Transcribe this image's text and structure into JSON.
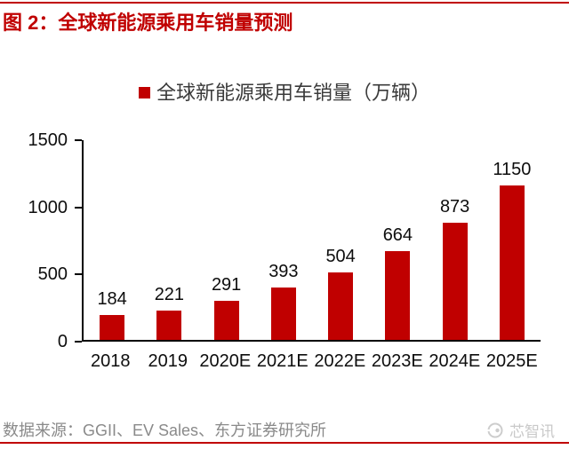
{
  "header": {
    "title": "图 2：全球新能源乘用车销量预测"
  },
  "chart_data": {
    "type": "bar",
    "title": "全球新能源乘用车销量预测",
    "legend": [
      "全球新能源乘用车销量（万辆）"
    ],
    "legend_position": "top-center",
    "categories": [
      "2018",
      "2019",
      "2020E",
      "2021E",
      "2022E",
      "2023E",
      "2024E",
      "2025E"
    ],
    "values": [
      184,
      221,
      291,
      393,
      504,
      664,
      873,
      1150
    ],
    "xlabel": "",
    "ylabel": "",
    "unit": "万辆",
    "ylim": [
      0,
      1500
    ],
    "yticks": [
      0,
      500,
      1000,
      1500
    ],
    "grid": false,
    "bar_color": "#c00000"
  },
  "footer": {
    "source": "数据来源：GGII、EV Sales、东方证券研究所",
    "watermark": "芯智讯"
  },
  "colors": {
    "accent_red": "#c00000",
    "bar_red": "#c00000",
    "axis_black": "#000000",
    "source_gray": "#8a8a8a",
    "watermark_gray": "#c9c9c9"
  }
}
